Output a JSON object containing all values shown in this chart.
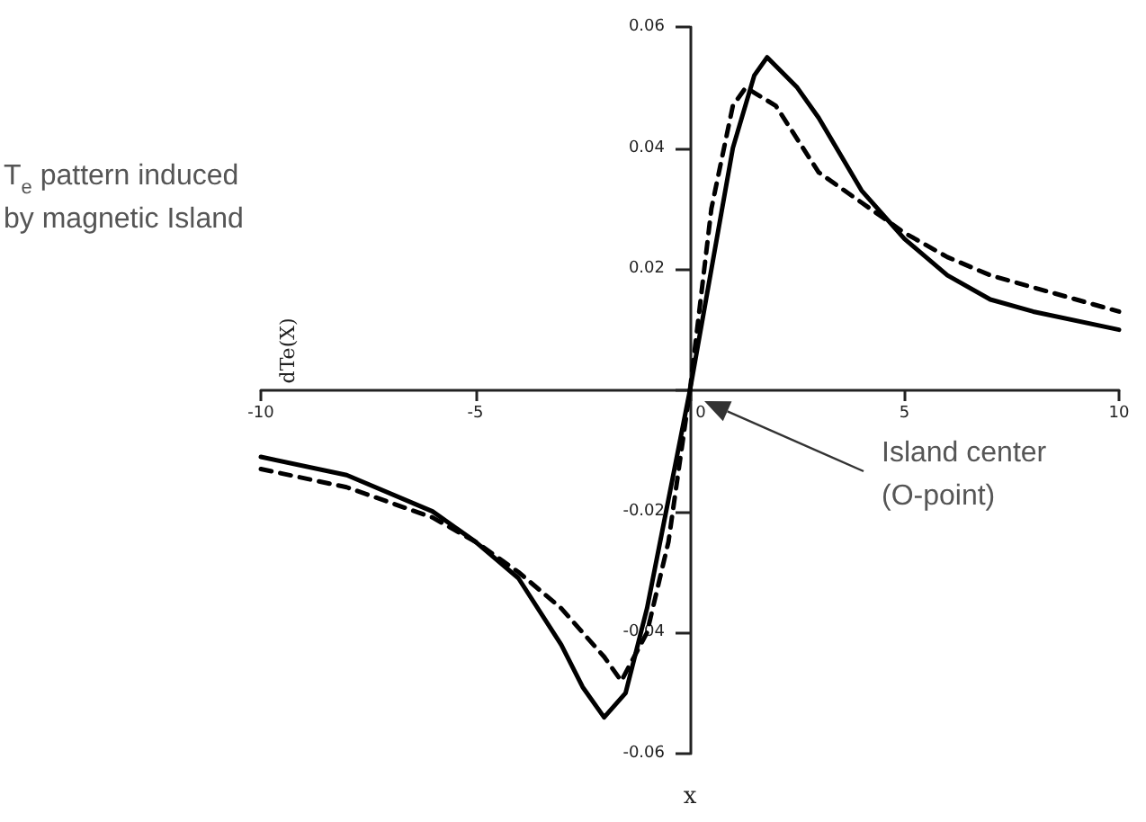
{
  "chart_data": {
    "type": "line",
    "xlabel": "x",
    "ylabel": "dTe(X)",
    "xlim": [
      -10,
      10
    ],
    "xticks": [
      -10,
      -5,
      0,
      5,
      10
    ],
    "ylim": [
      -0.06,
      0.06
    ],
    "yticks": [
      -0.06,
      -0.04,
      -0.02,
      {
        "value": 0,
        "label": null
      },
      0.02,
      0.04,
      0.06
    ],
    "grid": false,
    "marker": "none",
    "annotations": [
      "T$_{e}$ pattern induced by magnetic Island",
      "Island center (O-point)"
    ],
    "series": [
      {
        "color": "#000000",
        "line_style": "solid",
        "x": [
          -10,
          -8,
          -6,
          -5,
          -4,
          -3,
          -2.5,
          -2,
          -1.5,
          -1,
          -0.5,
          0,
          0.5,
          1,
          1.5,
          1.8,
          2.5,
          3,
          4,
          5,
          6,
          7,
          8,
          10
        ],
        "values": [
          -0.011,
          -0.014,
          -0.02,
          -0.025,
          -0.031,
          -0.042,
          -0.049,
          -0.054,
          -0.05,
          -0.036,
          -0.018,
          0,
          0.02,
          0.04,
          0.052,
          0.055,
          0.05,
          0.045,
          0.033,
          0.025,
          0.019,
          0.015,
          0.013,
          0.01
        ]
      },
      {
        "color": "#000000",
        "line_style": "dashed",
        "x": [
          -10,
          -8,
          -6,
          -5,
          -4,
          -3,
          -2,
          -1.6,
          -1,
          -0.5,
          0,
          0.5,
          1,
          1.3,
          2,
          3,
          4,
          5,
          6,
          7,
          8,
          10
        ],
        "values": [
          -0.013,
          -0.016,
          -0.021,
          -0.025,
          -0.03,
          -0.036,
          -0.044,
          -0.048,
          -0.04,
          -0.025,
          0,
          0.03,
          0.047,
          0.05,
          0.047,
          0.036,
          0.031,
          0.026,
          0.022,
          0.019,
          0.017,
          0.013
        ]
      }
    ]
  }
}
